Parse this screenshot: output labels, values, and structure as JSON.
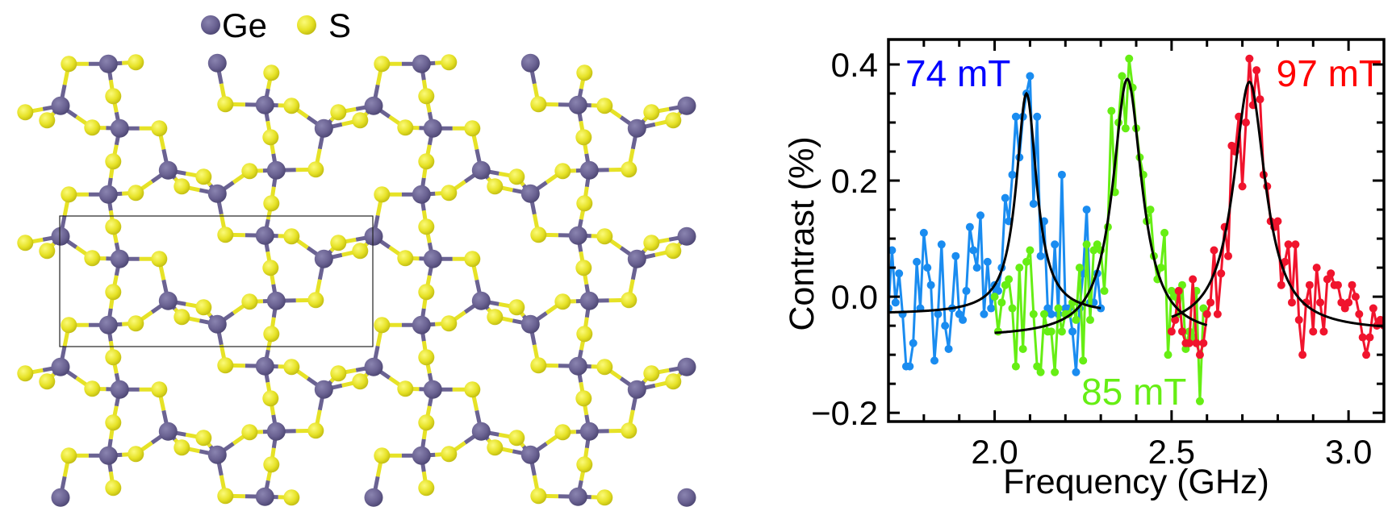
{
  "structure": {
    "legend": [
      {
        "label": "Ge",
        "color": "#6a6292"
      },
      {
        "label": "S",
        "color": "#e6e226"
      }
    ],
    "unit_cell_outline": true
  },
  "chart_data": {
    "type": "line",
    "xlabel": "Frequency (GHz)",
    "ylabel": "Contrast (%)",
    "xlim": [
      1.7,
      3.1
    ],
    "ylim": [
      -0.215,
      0.443
    ],
    "xticks": [
      {
        "value": 2.0,
        "label": "2.0"
      },
      {
        "value": 2.5,
        "label": "2.5"
      },
      {
        "value": 3.0,
        "label": "3.0"
      }
    ],
    "yticks": [
      {
        "value": -0.2,
        "label": "−0.2"
      },
      {
        "value": 0.0,
        "label": "0.0"
      },
      {
        "value": 0.2,
        "label": "0.2"
      },
      {
        "value": 0.4,
        "label": "0.4"
      }
    ],
    "x_minor_step": 0.1,
    "y_minor_step": 0.05,
    "grid": false,
    "fit_color": "#000000",
    "series": [
      {
        "name": "74 mT",
        "color": "#1a8cf0",
        "label_color": "#0000ff",
        "x": [
          1.7,
          1.71,
          1.72,
          1.73,
          1.74,
          1.75,
          1.76,
          1.77,
          1.78,
          1.79,
          1.8,
          1.81,
          1.82,
          1.83,
          1.84,
          1.85,
          1.86,
          1.87,
          1.88,
          1.89,
          1.9,
          1.91,
          1.92,
          1.93,
          1.94,
          1.95,
          1.96,
          1.97,
          1.98,
          1.99,
          2.0,
          2.01,
          2.02,
          2.03,
          2.04,
          2.05,
          2.06,
          2.07,
          2.08,
          2.09,
          2.1,
          2.11,
          2.12,
          2.13,
          2.14,
          2.15,
          2.16,
          2.17,
          2.18,
          2.19,
          2.2,
          2.21,
          2.22,
          2.23,
          2.24,
          2.25,
          2.26,
          2.27,
          2.28,
          2.29,
          2.3
        ],
        "y": [
          -0.02,
          0.08,
          -0.01,
          0.04,
          -0.03,
          -0.12,
          -0.12,
          -0.08,
          0.06,
          -0.02,
          0.11,
          0.05,
          0.02,
          -0.11,
          -0.03,
          0.09,
          -0.05,
          -0.09,
          -0.02,
          0.07,
          -0.03,
          -0.04,
          0.01,
          0.12,
          0.08,
          0.05,
          0.14,
          -0.03,
          0.06,
          -0.02,
          0.02,
          0.01,
          0.05,
          0.17,
          0.13,
          0.21,
          0.31,
          0.24,
          0.31,
          0.35,
          0.38,
          0.16,
          0.31,
          0.07,
          0.13,
          -0.02,
          -0.03,
          0.09,
          -0.03,
          0.21,
          -0.02,
          -0.02,
          -0.06,
          -0.13,
          -0.02,
          0.04,
          0.15,
          -0.01,
          -0.01,
          0.04,
          -0.02
        ],
        "fit": {
          "center": 2.09,
          "amplitude": 0.38,
          "hwhm": 0.035,
          "offset": -0.03,
          "range": [
            1.7,
            2.3
          ]
        }
      },
      {
        "name": "85 mT",
        "color": "#66ee14",
        "label_color": "#66ee14",
        "x": [
          2.0,
          2.01,
          2.02,
          2.03,
          2.04,
          2.05,
          2.06,
          2.07,
          2.08,
          2.09,
          2.1,
          2.11,
          2.12,
          2.13,
          2.14,
          2.15,
          2.16,
          2.17,
          2.18,
          2.19,
          2.2,
          2.21,
          2.22,
          2.23,
          2.24,
          2.25,
          2.26,
          2.27,
          2.28,
          2.29,
          2.3,
          2.31,
          2.32,
          2.33,
          2.34,
          2.35,
          2.36,
          2.37,
          2.38,
          2.39,
          2.4,
          2.41,
          2.42,
          2.43,
          2.44,
          2.45,
          2.46,
          2.47,
          2.48,
          2.49,
          2.5,
          2.51,
          2.52,
          2.53,
          2.54,
          2.55,
          2.56,
          2.57,
          2.58,
          2.59,
          2.6
        ],
        "y": [
          0.0,
          -0.06,
          -0.01,
          0.02,
          0.03,
          -0.02,
          -0.12,
          0.05,
          -0.09,
          0.06,
          0.08,
          -0.03,
          -0.12,
          -0.13,
          -0.03,
          -0.06,
          -0.06,
          -0.13,
          -0.02,
          -0.06,
          -0.03,
          -0.03,
          -0.01,
          -0.04,
          0.05,
          -0.11,
          0.09,
          -0.04,
          0.08,
          0.09,
          0.08,
          0.01,
          0.12,
          0.32,
          0.18,
          0.3,
          0.38,
          0.29,
          0.41,
          0.36,
          0.29,
          0.24,
          0.21,
          0.13,
          0.15,
          0.07,
          0.03,
          0.05,
          0.11,
          -0.1,
          0.01,
          0.0,
          -0.03,
          0.02,
          -0.09,
          -0.06,
          -0.07,
          0.01,
          -0.18,
          -0.02,
          -0.03
        ],
        "fit": {
          "center": 2.375,
          "amplitude": 0.445,
          "hwhm": 0.05,
          "offset": -0.07,
          "range": [
            2.0,
            2.6
          ]
        }
      },
      {
        "name": "97 mT",
        "color": "#f0142d",
        "label_color": "#ff0000",
        "x": [
          2.5,
          2.51,
          2.52,
          2.53,
          2.54,
          2.55,
          2.56,
          2.57,
          2.58,
          2.59,
          2.6,
          2.61,
          2.62,
          2.63,
          2.64,
          2.65,
          2.66,
          2.67,
          2.68,
          2.69,
          2.7,
          2.71,
          2.72,
          2.73,
          2.74,
          2.75,
          2.76,
          2.77,
          2.78,
          2.79,
          2.8,
          2.81,
          2.82,
          2.83,
          2.84,
          2.85,
          2.86,
          2.87,
          2.88,
          2.89,
          2.9,
          2.91,
          2.92,
          2.93,
          2.94,
          2.95,
          2.96,
          2.97,
          2.98,
          2.99,
          3.0,
          3.01,
          3.02,
          3.03,
          3.04,
          3.05,
          3.06,
          3.07,
          3.08,
          3.09,
          3.1
        ],
        "y": [
          -0.06,
          -0.04,
          0.01,
          -0.06,
          -0.08,
          -0.08,
          0.03,
          -0.08,
          -0.1,
          -0.08,
          -0.03,
          -0.01,
          0.08,
          -0.03,
          0.04,
          0.12,
          0.07,
          0.26,
          0.25,
          0.31,
          0.19,
          0.3,
          0.41,
          0.33,
          0.39,
          0.34,
          0.21,
          0.19,
          0.13,
          0.12,
          0.13,
          0.02,
          0.06,
          0.09,
          -0.01,
          0.09,
          -0.04,
          -0.1,
          -0.01,
          0.02,
          -0.06,
          0.05,
          -0.01,
          -0.06,
          0.03,
          0.04,
          0.02,
          0.02,
          -0.01,
          -0.02,
          -0.01,
          0.02,
          0.0,
          -0.03,
          -0.07,
          -0.1,
          -0.07,
          -0.02,
          -0.05,
          -0.04,
          -0.05
        ],
        "fit": {
          "center": 2.72,
          "amplitude": 0.43,
          "hwhm": 0.055,
          "offset": -0.06,
          "range": [
            2.5,
            3.1
          ]
        }
      }
    ]
  }
}
